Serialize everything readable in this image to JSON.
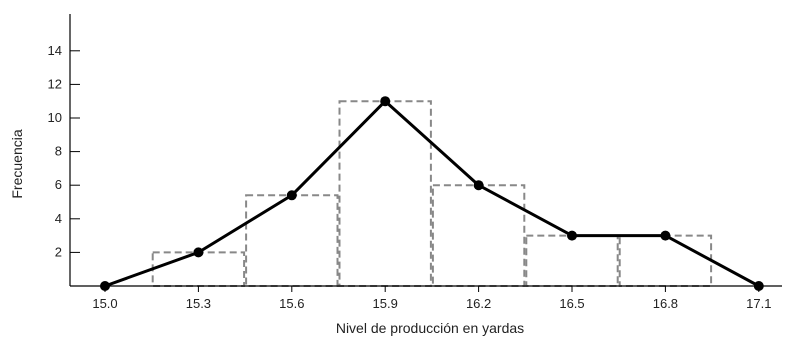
{
  "chart_data": {
    "type": "line",
    "xlabel": "Nivel de producción en yardas",
    "ylabel": "Frecuencia",
    "x_ticks": [
      "15.0",
      "15.3",
      "15.6",
      "15.9",
      "16.2",
      "16.5",
      "16.8",
      "17.1"
    ],
    "y_ticks": [
      "2",
      "4",
      "6",
      "8",
      "10",
      "12",
      "14"
    ],
    "ylim": [
      0,
      15
    ],
    "xlim": [
      15.0,
      17.1
    ],
    "histogram": {
      "bin_width": 0.3,
      "bars": [
        {
          "center": 15.3,
          "value": 2
        },
        {
          "center": 15.6,
          "value": 5.4
        },
        {
          "center": 15.9,
          "value": 11
        },
        {
          "center": 16.2,
          "value": 6
        },
        {
          "center": 16.5,
          "value": 3
        },
        {
          "center": 16.8,
          "value": 3
        }
      ]
    },
    "series": [
      {
        "x": [
          15.0,
          15.3,
          15.6,
          15.9,
          16.2,
          16.5,
          16.8,
          17.1
        ],
        "values": [
          0,
          2,
          5.4,
          11,
          6,
          3,
          3,
          0
        ]
      }
    ],
    "grid": false,
    "colors": {
      "line": "#000000",
      "bars": "#888888"
    }
  }
}
